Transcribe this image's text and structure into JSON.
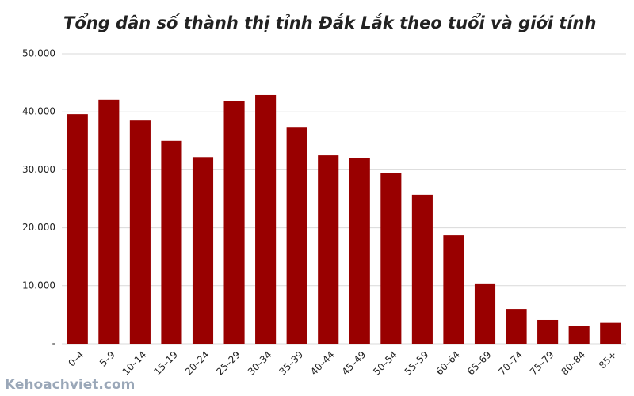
{
  "chart_data": {
    "type": "bar",
    "title": "Tổng dân số thành thị tỉnh Đắk Lắk theo tuổi và giới tính",
    "categories": [
      "0–4",
      "5–9",
      "10–14",
      "15–19",
      "20–24",
      "25–29",
      "30–34",
      "35–39",
      "40–44",
      "45–49",
      "50–54",
      "55–59",
      "60–64",
      "65–69",
      "70–74",
      "75–79",
      "80–84",
      "85+"
    ],
    "values": [
      39600,
      42100,
      38500,
      35000,
      32200,
      41900,
      42900,
      37400,
      32500,
      32100,
      29500,
      25700,
      18700,
      10400,
      6000,
      4100,
      3100,
      3600
    ],
    "color": "#990000",
    "ylim": [
      0,
      50000
    ],
    "yticks": [
      {
        "value": 0,
        "label": "-"
      },
      {
        "value": 10000,
        "label": "10.000"
      },
      {
        "value": 20000,
        "label": "20.000"
      },
      {
        "value": 30000,
        "label": "30.000"
      },
      {
        "value": 40000,
        "label": "40.000"
      },
      {
        "value": 50000,
        "label": "50.000"
      }
    ],
    "grid": true
  },
  "watermark": "Kehoachviet.com"
}
